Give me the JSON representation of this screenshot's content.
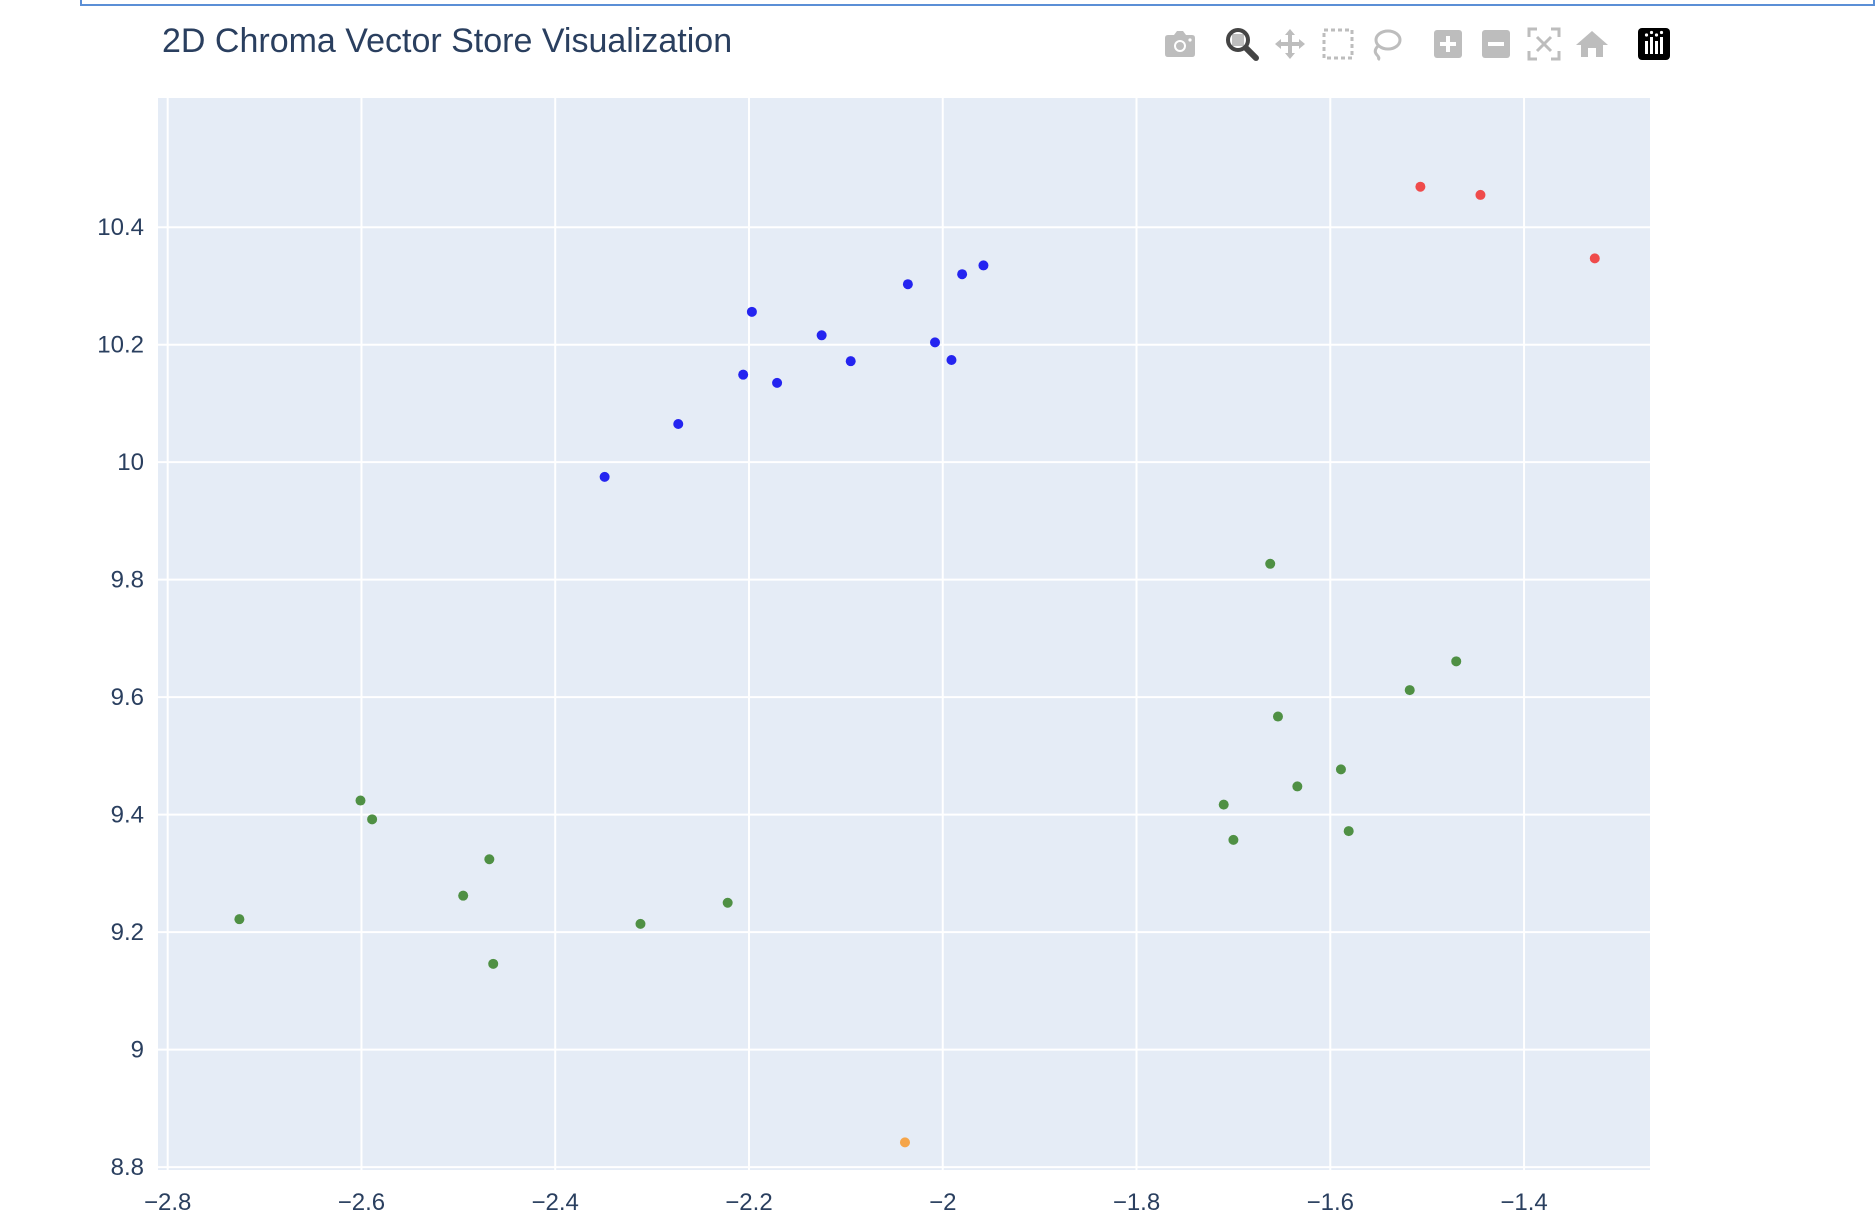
{
  "title": "2D Chroma Vector Store Visualization",
  "modebar": [
    {
      "name": "camera-icon"
    },
    {
      "name": "zoom-icon"
    },
    {
      "name": "pan-icon"
    },
    {
      "name": "box-select-icon"
    },
    {
      "name": "lasso-select-icon"
    },
    {
      "name": "zoom-in-icon"
    },
    {
      "name": "zoom-out-icon"
    },
    {
      "name": "autoscale-icon"
    },
    {
      "name": "reset-axes-icon"
    },
    {
      "name": "plotly-logo-icon"
    }
  ],
  "chart_data": {
    "type": "scatter",
    "title": "2D Chroma Vector Store Visualization",
    "xlabel": "",
    "ylabel": "",
    "xlim": [
      -2.81,
      -1.27
    ],
    "ylim": [
      8.795,
      10.62
    ],
    "xticks": [
      -2.8,
      -2.6,
      -2.4,
      -2.2,
      -2.0,
      -1.8,
      -1.6,
      -1.4
    ],
    "xtick_labels": [
      "−2.8",
      "−2.6",
      "−2.4",
      "−2.2",
      "−2",
      "−1.8",
      "−1.6",
      "−1.4"
    ],
    "yticks": [
      8.8,
      9.0,
      9.2,
      9.4,
      9.6,
      9.8,
      10.0,
      10.2,
      10.4
    ],
    "ytick_labels": [
      "8.8",
      "9",
      "9.2",
      "9.4",
      "9.6",
      "9.8",
      "10",
      "10.2",
      "10.4"
    ],
    "grid": true,
    "background": "#e5ecf6",
    "series": [
      {
        "color": "#2424f0",
        "points": [
          [
            -2.349,
            9.975
          ],
          [
            -2.273,
            10.065
          ],
          [
            -2.206,
            10.149
          ],
          [
            -2.197,
            10.256
          ],
          [
            -2.171,
            10.135
          ],
          [
            -2.125,
            10.216
          ],
          [
            -2.095,
            10.172
          ],
          [
            -2.036,
            10.303
          ],
          [
            -2.008,
            10.204
          ],
          [
            -1.991,
            10.174
          ],
          [
            -1.98,
            10.32
          ],
          [
            -1.958,
            10.335
          ]
        ]
      },
      {
        "color": "#ef4b4b",
        "points": [
          [
            -1.507,
            10.469
          ],
          [
            -1.445,
            10.455
          ],
          [
            -1.327,
            10.347
          ]
        ]
      },
      {
        "color": "#4f9044",
        "points": [
          [
            -2.726,
            9.222
          ],
          [
            -2.601,
            9.424
          ],
          [
            -2.589,
            9.392
          ],
          [
            -2.495,
            9.262
          ],
          [
            -2.468,
            9.324
          ],
          [
            -2.464,
            9.146
          ],
          [
            -2.312,
            9.214
          ],
          [
            -2.222,
            9.25
          ],
          [
            -1.71,
            9.417
          ],
          [
            -1.7,
            9.357
          ],
          [
            -1.662,
            9.827
          ],
          [
            -1.654,
            9.567
          ],
          [
            -1.634,
            9.448
          ],
          [
            -1.589,
            9.477
          ],
          [
            -1.581,
            9.372
          ],
          [
            -1.518,
            9.612
          ],
          [
            -1.47,
            9.661
          ]
        ]
      },
      {
        "color": "#f5a54a",
        "points": [
          [
            -2.039,
            8.842
          ]
        ]
      }
    ]
  }
}
